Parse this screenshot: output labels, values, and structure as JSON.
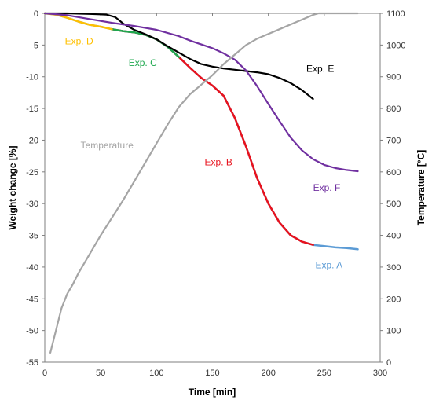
{
  "chart_data": {
    "type": "line",
    "xlabel": "Time [min]",
    "ylabel_left": "Weight change [%]",
    "ylabel_right": "Temperature [°C]",
    "xlim": [
      0,
      300
    ],
    "ylim_left": [
      -55,
      0
    ],
    "ylim_right": [
      0,
      1100
    ],
    "x_ticks": [
      0,
      50,
      100,
      150,
      200,
      250,
      300
    ],
    "y_left_ticks": [
      0,
      -5,
      -10,
      -15,
      -20,
      -25,
      -30,
      -35,
      -40,
      -45,
      -50,
      -55
    ],
    "y_right_ticks": [
      0,
      100,
      200,
      300,
      400,
      500,
      600,
      700,
      800,
      900,
      1000,
      1100
    ],
    "grid": false,
    "legend": "none",
    "series": [
      {
        "name": "Exp. A",
        "axis": "left",
        "color": "#5b9bd5",
        "label_at": [
          242,
          -40.2
        ],
        "points": [
          [
            0,
            0
          ],
          [
            10,
            -0.2
          ],
          [
            20,
            -0.7
          ],
          [
            30,
            -1.3
          ],
          [
            40,
            -1.8
          ],
          [
            50,
            -2.1
          ],
          [
            60,
            -2.5
          ],
          [
            70,
            -2.8
          ],
          [
            80,
            -3.0
          ],
          [
            90,
            -3.4
          ],
          [
            100,
            -4.1
          ],
          [
            110,
            -5.3
          ],
          [
            120,
            -6.9
          ],
          [
            130,
            -8.6
          ],
          [
            140,
            -10.2
          ],
          [
            150,
            -11.4
          ],
          [
            160,
            -13.0
          ],
          [
            170,
            -16.5
          ],
          [
            180,
            -21.0
          ],
          [
            190,
            -26.0
          ],
          [
            200,
            -30.0
          ],
          [
            210,
            -33.0
          ],
          [
            220,
            -35.0
          ],
          [
            230,
            -36.0
          ],
          [
            240,
            -36.5
          ],
          [
            250,
            -36.7
          ],
          [
            260,
            -36.9
          ],
          [
            270,
            -37.0
          ],
          [
            280,
            -37.2
          ]
        ]
      },
      {
        "name": "Exp. B",
        "axis": "left",
        "color": "#e8121d",
        "label_at": [
          143,
          -24.0
        ],
        "points": [
          [
            60,
            -2.5
          ],
          [
            70,
            -2.8
          ],
          [
            80,
            -3.0
          ],
          [
            90,
            -3.4
          ],
          [
            100,
            -4.1
          ],
          [
            110,
            -5.3
          ],
          [
            120,
            -6.9
          ],
          [
            130,
            -8.6
          ],
          [
            140,
            -10.2
          ],
          [
            150,
            -11.4
          ],
          [
            160,
            -13.0
          ],
          [
            170,
            -16.5
          ],
          [
            180,
            -21.0
          ],
          [
            190,
            -26.0
          ],
          [
            200,
            -30.0
          ],
          [
            210,
            -33.0
          ],
          [
            220,
            -35.0
          ],
          [
            230,
            -36.0
          ],
          [
            240,
            -36.5
          ]
        ]
      },
      {
        "name": "Exp. C",
        "axis": "left",
        "color": "#1fa84f",
        "label_at": [
          75,
          -8.3
        ],
        "points": [
          [
            60,
            -2.5
          ],
          [
            70,
            -2.8
          ],
          [
            80,
            -3.0
          ],
          [
            90,
            -3.4
          ],
          [
            100,
            -4.1
          ],
          [
            110,
            -5.3
          ],
          [
            120,
            -6.9
          ]
        ]
      },
      {
        "name": "Exp. D",
        "axis": "left",
        "color": "#ffc000",
        "label_at": [
          18,
          -4.9
        ],
        "points": [
          [
            0,
            0
          ],
          [
            10,
            -0.2
          ],
          [
            20,
            -0.7
          ],
          [
            30,
            -1.3
          ],
          [
            40,
            -1.8
          ],
          [
            50,
            -2.1
          ],
          [
            60,
            -2.5
          ]
        ]
      },
      {
        "name": "Exp. E",
        "axis": "left",
        "color": "#000000",
        "label_at": [
          234,
          -9.2
        ],
        "points": [
          [
            0,
            0
          ],
          [
            20,
            0
          ],
          [
            40,
            -0.1
          ],
          [
            55,
            -0.2
          ],
          [
            63,
            -0.6
          ],
          [
            70,
            -1.6
          ],
          [
            80,
            -2.6
          ],
          [
            90,
            -3.3
          ],
          [
            100,
            -4.1
          ],
          [
            110,
            -5.2
          ],
          [
            120,
            -6.2
          ],
          [
            130,
            -7.2
          ],
          [
            140,
            -8.0
          ],
          [
            150,
            -8.4
          ],
          [
            160,
            -8.7
          ],
          [
            170,
            -8.9
          ],
          [
            180,
            -9.1
          ],
          [
            190,
            -9.3
          ],
          [
            200,
            -9.6
          ],
          [
            210,
            -10.2
          ],
          [
            220,
            -11.0
          ],
          [
            230,
            -12.1
          ],
          [
            240,
            -13.5
          ]
        ]
      },
      {
        "name": "Exp. F",
        "axis": "left",
        "color": "#7030a0",
        "label_at": [
          240,
          -28.0
        ],
        "points": [
          [
            0,
            0
          ],
          [
            20,
            -0.3
          ],
          [
            40,
            -0.9
          ],
          [
            60,
            -1.5
          ],
          [
            80,
            -2.0
          ],
          [
            100,
            -2.6
          ],
          [
            120,
            -3.6
          ],
          [
            130,
            -4.3
          ],
          [
            140,
            -4.9
          ],
          [
            150,
            -5.5
          ],
          [
            160,
            -6.3
          ],
          [
            170,
            -7.3
          ],
          [
            180,
            -9.0
          ],
          [
            190,
            -11.5
          ],
          [
            200,
            -14.3
          ],
          [
            210,
            -17.0
          ],
          [
            220,
            -19.6
          ],
          [
            230,
            -21.6
          ],
          [
            240,
            -23.0
          ],
          [
            250,
            -23.9
          ],
          [
            260,
            -24.4
          ],
          [
            270,
            -24.7
          ],
          [
            280,
            -24.9
          ]
        ]
      },
      {
        "name": "Temperature",
        "axis": "right",
        "color": "#a5a5a5",
        "label_at": [
          32,
          -21.3
        ],
        "points": [
          [
            5,
            30
          ],
          [
            10,
            100
          ],
          [
            15,
            170
          ],
          [
            20,
            215
          ],
          [
            25,
            245
          ],
          [
            30,
            280
          ],
          [
            40,
            340
          ],
          [
            50,
            400
          ],
          [
            60,
            455
          ],
          [
            70,
            510
          ],
          [
            80,
            570
          ],
          [
            90,
            630
          ],
          [
            100,
            690
          ],
          [
            110,
            750
          ],
          [
            120,
            805
          ],
          [
            130,
            845
          ],
          [
            140,
            875
          ],
          [
            150,
            905
          ],
          [
            160,
            940
          ],
          [
            170,
            970
          ],
          [
            180,
            1000
          ],
          [
            190,
            1020
          ],
          [
            200,
            1035
          ],
          [
            210,
            1050
          ],
          [
            220,
            1065
          ],
          [
            230,
            1080
          ],
          [
            240,
            1095
          ],
          [
            245,
            1100
          ],
          [
            250,
            1100
          ],
          [
            260,
            1100
          ],
          [
            270,
            1100
          ],
          [
            280,
            1100
          ]
        ]
      }
    ]
  }
}
